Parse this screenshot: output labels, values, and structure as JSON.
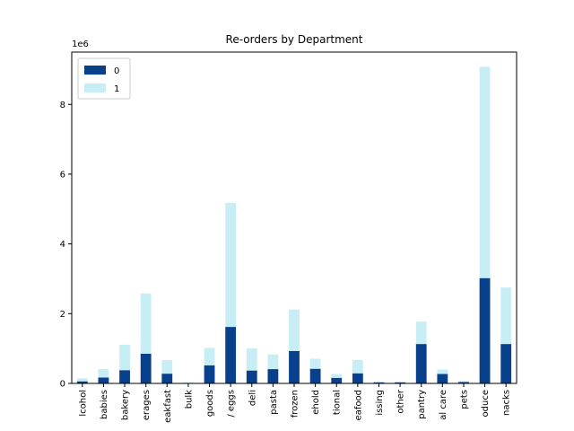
{
  "chart_data": {
    "type": "bar",
    "stacked": true,
    "title": "Re-orders by Department",
    "xlabel": "",
    "ylabel": "",
    "y_scale_label": "1e6",
    "ylim": [
      0,
      9.5
    ],
    "yticks": [
      0,
      2,
      4,
      6,
      8
    ],
    "grid": false,
    "legend_position": "upper-left",
    "categories": [
      "alcohol",
      "babies",
      "bakery",
      "beverages",
      "breakfast",
      "bulk",
      "canned goods",
      "dairy eggs",
      "deli",
      "dry goods pasta",
      "frozen",
      "household",
      "international",
      "meat seafood",
      "missing",
      "other",
      "pantry",
      "personal care",
      "pets",
      "produce",
      "snacks"
    ],
    "tick_labels": [
      "lcohol",
      "babies",
      "bakery",
      "erages",
      "eakfast",
      "bulk",
      "goods",
      "/ eggs",
      "deli",
      "pasta",
      "frozen",
      "ehold",
      "tional",
      "eafood",
      "issing",
      "other",
      "pantry",
      "al care",
      "pets",
      "oduce",
      "nacks"
    ],
    "series": [
      {
        "name": "0",
        "color": "#08408b",
        "values": [
          0.06,
          0.17,
          0.38,
          0.85,
          0.28,
          0.01,
          0.52,
          1.62,
          0.37,
          0.41,
          0.93,
          0.42,
          0.16,
          0.29,
          0.03,
          0.03,
          1.13,
          0.27,
          0.04,
          3.02,
          1.13
        ]
      },
      {
        "name": "1",
        "color": "#c8eef5",
        "values": [
          0.09,
          0.24,
          0.73,
          1.73,
          0.39,
          0.02,
          0.5,
          3.56,
          0.64,
          0.42,
          1.19,
          0.29,
          0.11,
          0.38,
          0.02,
          0.02,
          0.64,
          0.13,
          0.03,
          6.06,
          1.62
        ]
      }
    ]
  }
}
